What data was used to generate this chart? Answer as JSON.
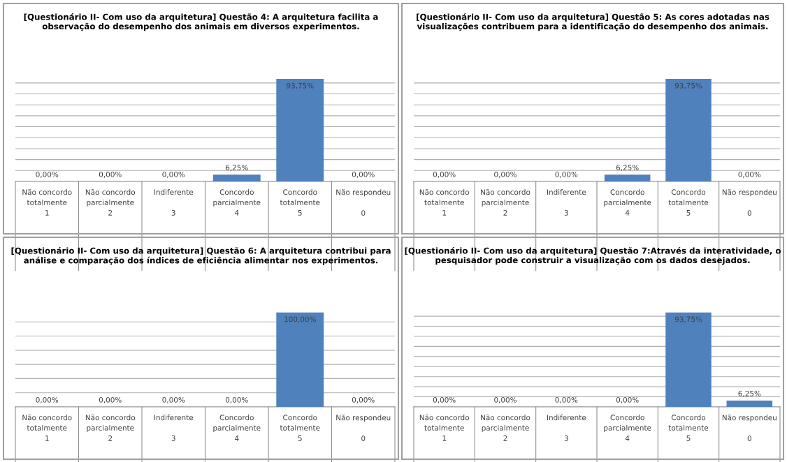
{
  "chart_data": [
    {
      "type": "bar",
      "title": "[Questionário II- Com uso da arquitetura] Questão 4: A arquitetura facilita a observação do desempenho dos animais em diversos experimentos.",
      "categories": [
        "Não concordo\ntotalmente\n1",
        "Não concordo\nparcialmente\n2",
        "Indiferente\n\n3",
        "Concordo\nparcialmente\n4",
        "Concordo\ntotalmente\n5",
        "Não respondeu\n\n0"
      ],
      "values": [
        0,
        0,
        0,
        6.25,
        93.75,
        0
      ],
      "value_labels": [
        "0,00%",
        "0,00%",
        "0,00%",
        "6,25%",
        "93,75%",
        "0,00%"
      ],
      "color": "#4f81bd",
      "grid": "y",
      "tick_labels": "x"
    },
    {
      "type": "bar",
      "title": "[Questionário II- Com uso da arquitetura] Questão 5: As cores adotadas nas visualizações contribuem para a identificação do desempenho dos animais.",
      "categories": [
        "Não concordo\ntotalmente\n1",
        "Não concordo\nparcialmente\n2",
        "Indiferente\n\n3",
        "Concordo\nparcialmente\n4",
        "Concordo\ntotalmente\n5",
        "Não respondeu\n\n0"
      ],
      "values": [
        0,
        0,
        0,
        6.25,
        93.75,
        0
      ],
      "value_labels": [
        "0,00%",
        "0,00%",
        "0,00%",
        "6,25%",
        "93,75%",
        "0,00%"
      ],
      "color": "#4f81bd",
      "grid": "y",
      "tick_labels": "x"
    },
    {
      "type": "bar",
      "title": "[Questionário II- Com uso da arquitetura] Questão 6: A arquitetura contribui para análise e comparação dos índices de eficiência alimentar nos experimentos.",
      "categories": [
        "Não concordo\ntotalmente\n1",
        "Não concordo\nparcialmente\n2",
        "Indiferente\n\n3",
        "Concordo\nparcialmente\n4",
        "Concordo\ntotalmente\n5",
        "Não respondeu\n\n0"
      ],
      "values": [
        0,
        0,
        0,
        0,
        100,
        0
      ],
      "value_labels": [
        "0,00%",
        "0,00%",
        "0,00%",
        "0,00%",
        "100,00%",
        "0,00%"
      ],
      "color": "#4f81bd",
      "grid": "y",
      "tick_labels": "x"
    },
    {
      "type": "bar",
      "title": "[Questionário II- Com uso da arquitetura] Questão 7:Através da interatividade, o pesquisador pode construir a visualização com os dados desejados.",
      "categories": [
        "Não concordo\ntotalmente\n1",
        "Não concordo\nparcialmente\n2",
        "Indiferente\n\n3",
        "Concordo\nparcialmente\n4",
        "Concordo\ntotalmente\n5",
        "Não respondeu\n\n0"
      ],
      "values": [
        0,
        0,
        0,
        0,
        93.75,
        6.25
      ],
      "value_labels": [
        "0,00%",
        "0,00%",
        "0,00%",
        "0,00%",
        "93,75%",
        "6,25%"
      ],
      "color": "#4f81bd",
      "grid": "y",
      "tick_labels": "x"
    }
  ]
}
